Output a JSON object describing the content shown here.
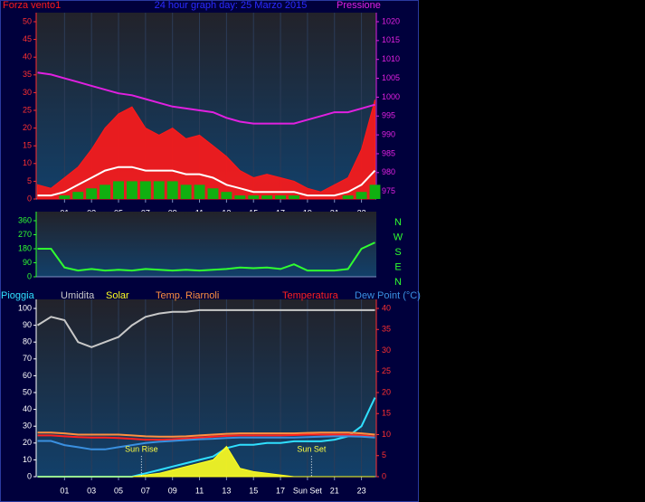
{
  "chart_data": [
    {
      "type": "line",
      "title": "24 hour graph day: 25 Marzo 2015",
      "title_color": "#2a2aff",
      "x": [
        -1,
        0,
        1,
        2,
        3,
        4,
        5,
        6,
        7,
        8,
        9,
        10,
        11,
        12,
        13,
        14,
        15,
        16,
        17,
        18,
        19,
        20,
        21,
        22,
        23,
        24
      ],
      "xlim": [
        -1.1,
        24.1
      ],
      "xticks": [
        {
          "value": 1,
          "label": "01"
        },
        {
          "value": 3,
          "label": "03"
        },
        {
          "value": 5,
          "label": "05"
        },
        {
          "value": 7,
          "label": "07"
        },
        {
          "value": 9,
          "label": "09"
        },
        {
          "value": 11,
          "label": "11"
        },
        {
          "value": 13,
          "label": "13"
        },
        {
          "value": 15,
          "label": "15"
        },
        {
          "value": 17,
          "label": "17"
        },
        {
          "value": 19,
          "label": "19"
        },
        {
          "value": 21,
          "label": "21"
        },
        {
          "value": 23,
          "label": "23"
        }
      ],
      "ylim": [
        0,
        50
      ],
      "yticks": [
        0,
        5,
        10,
        15,
        20,
        25,
        30,
        35,
        40,
        45,
        50
      ],
      "ytick_color": "#ff3030",
      "y2lim": [
        973,
        1020
      ],
      "y2ticks": [
        975,
        980,
        985,
        990,
        995,
        1000,
        1005,
        1010,
        1015,
        1020
      ],
      "y2tick_color": "#e020e0",
      "grid": true,
      "series": [
        {
          "name": "Forza vento1",
          "color": "#ff1a1a",
          "type": "area",
          "values": [
            4,
            3,
            6,
            9,
            14,
            20,
            24,
            26,
            20,
            18,
            20,
            17,
            18,
            15,
            12,
            8,
            6,
            7,
            6,
            5,
            3,
            2,
            4,
            6,
            14,
            28
          ]
        },
        {
          "color": "#10b010",
          "type": "bar",
          "values": [
            0,
            0,
            1,
            2,
            3,
            4,
            5,
            5,
            5,
            5,
            5,
            4,
            4,
            3,
            2,
            1,
            1,
            1,
            1,
            1,
            0,
            0,
            0,
            1,
            2,
            4
          ]
        },
        {
          "color": "#ffffff",
          "type": "line",
          "values": [
            1,
            1,
            2,
            4,
            6,
            8,
            9,
            9,
            8,
            8,
            8,
            7,
            7,
            6,
            4,
            3,
            2,
            2,
            2,
            2,
            1,
            1,
            1,
            2,
            4,
            8
          ]
        },
        {
          "name": "Pressione",
          "color": "#e020e0",
          "type": "line",
          "axis": "y2",
          "values": [
            1006.5,
            1006,
            1005,
            1004,
            1003,
            1002,
            1001,
            1000.5,
            999.5,
            998.5,
            997.5,
            997,
            996.5,
            996,
            994.5,
            993.5,
            993,
            993,
            993,
            993,
            994,
            995,
            996,
            996,
            997,
            998
          ]
        }
      ]
    },
    {
      "type": "line",
      "x": [
        -1,
        0,
        1,
        2,
        3,
        4,
        5,
        6,
        7,
        8,
        9,
        10,
        11,
        12,
        13,
        14,
        15,
        16,
        17,
        18,
        19,
        20,
        21,
        22,
        23,
        24
      ],
      "xlim": [
        -1.1,
        24.1
      ],
      "ylim": [
        0,
        360
      ],
      "yticks": [
        0,
        90,
        180,
        270,
        360
      ],
      "ytick_color": "#30ff30",
      "direction_labels": [
        "N",
        "W",
        "S",
        "E",
        "N"
      ],
      "direction_color": "#30ff30",
      "grid": true,
      "series": [
        {
          "color": "#30ff30",
          "type": "line",
          "values": [
            180,
            180,
            60,
            40,
            50,
            40,
            45,
            40,
            50,
            45,
            40,
            45,
            40,
            45,
            50,
            60,
            55,
            60,
            50,
            80,
            40,
            40,
            40,
            50,
            180,
            220
          ]
        }
      ]
    },
    {
      "type": "line",
      "x": [
        -1,
        0,
        1,
        2,
        3,
        4,
        5,
        6,
        7,
        8,
        9,
        10,
        11,
        12,
        13,
        14,
        15,
        16,
        17,
        18,
        19,
        20,
        21,
        22,
        23,
        24
      ],
      "xlim": [
        -1.1,
        24.1
      ],
      "xticks": [
        {
          "value": 1,
          "label": "01"
        },
        {
          "value": 3,
          "label": "03"
        },
        {
          "value": 5,
          "label": "05"
        },
        {
          "value": 7,
          "label": "07"
        },
        {
          "value": 9,
          "label": "09"
        },
        {
          "value": 11,
          "label": "11"
        },
        {
          "value": 13,
          "label": "13"
        },
        {
          "value": 15,
          "label": "15"
        },
        {
          "value": 17,
          "label": "17"
        },
        {
          "value": 19,
          "label": "Sun Set"
        },
        {
          "value": 21,
          "label": "21"
        },
        {
          "value": 23,
          "label": "23"
        }
      ],
      "ylim": [
        0,
        100
      ],
      "yticks": [
        0,
        10,
        20,
        30,
        40,
        50,
        60,
        70,
        80,
        90,
        100
      ],
      "ytick_color": "#ffffff",
      "y2lim": [
        0,
        40
      ],
      "y2ticks": [
        0,
        5,
        10,
        15,
        20,
        25,
        30,
        35,
        40
      ],
      "y2tick_color": "#ff3030",
      "grid": true,
      "annotations": [
        {
          "text": "Sun Rise",
          "x": 6.7,
          "y": 16
        },
        {
          "text": "Sun Set",
          "x": 19.3,
          "y": 16
        }
      ],
      "annotation_color": "#ffff40",
      "series": [
        {
          "name": "Pioggia",
          "color": "#30e0ff",
          "type": "line",
          "values": [
            0,
            0,
            0,
            0,
            0,
            0,
            0,
            0,
            2,
            4,
            6,
            8,
            10,
            12,
            17,
            19,
            19,
            20,
            20,
            21,
            21,
            21,
            22,
            24,
            30,
            47
          ]
        },
        {
          "name": "Umidita",
          "color": "#c8c8c8",
          "type": "line",
          "values": [
            90,
            95,
            93,
            80,
            77,
            80,
            83,
            90,
            95,
            97,
            98,
            98,
            99,
            99,
            99,
            99,
            99,
            99,
            99,
            99,
            99,
            99,
            99,
            99,
            99,
            99
          ]
        },
        {
          "name": "Solar",
          "color": "#ffff20",
          "type": "area",
          "values": [
            0,
            0,
            0,
            0,
            0,
            0,
            0,
            0,
            1,
            2,
            4,
            6,
            8,
            10,
            18,
            5,
            3,
            2,
            1,
            0,
            0,
            0,
            0,
            0,
            0,
            0
          ]
        },
        {
          "name": "Temp. Riarnoli",
          "color": "#ff9040",
          "type": "line",
          "axis": "y2",
          "values": [
            10.5,
            10.5,
            10.3,
            10,
            10,
            10,
            10,
            9.8,
            9.6,
            9.5,
            9.5,
            9.6,
            9.8,
            10,
            10.2,
            10.3,
            10.3,
            10.3,
            10.3,
            10.3,
            10.4,
            10.5,
            10.5,
            10.5,
            10.3,
            10
          ]
        },
        {
          "name": "Temperatura",
          "color": "#ff2020",
          "type": "line",
          "axis": "y2",
          "values": [
            9.8,
            9.8,
            9.6,
            9.4,
            9.3,
            9.3,
            9.2,
            9,
            8.8,
            8.8,
            8.9,
            9.1,
            9.3,
            9.5,
            9.7,
            9.8,
            9.8,
            9.8,
            9.8,
            9.9,
            10,
            10,
            10,
            10,
            9.8,
            9.5
          ]
        },
        {
          "name": "Dew Point (°C)",
          "color": "#3a90e0",
          "type": "line",
          "axis": "y2",
          "values": [
            8.5,
            8.5,
            7.5,
            7,
            6.5,
            6.5,
            7,
            7.5,
            8,
            8.3,
            8.5,
            8.7,
            8.9,
            9,
            9.2,
            9.3,
            9.3,
            9.3,
            9.3,
            9.3,
            9.4,
            9.5,
            9.6,
            9.6,
            9.5,
            9.3
          ]
        }
      ]
    }
  ]
}
